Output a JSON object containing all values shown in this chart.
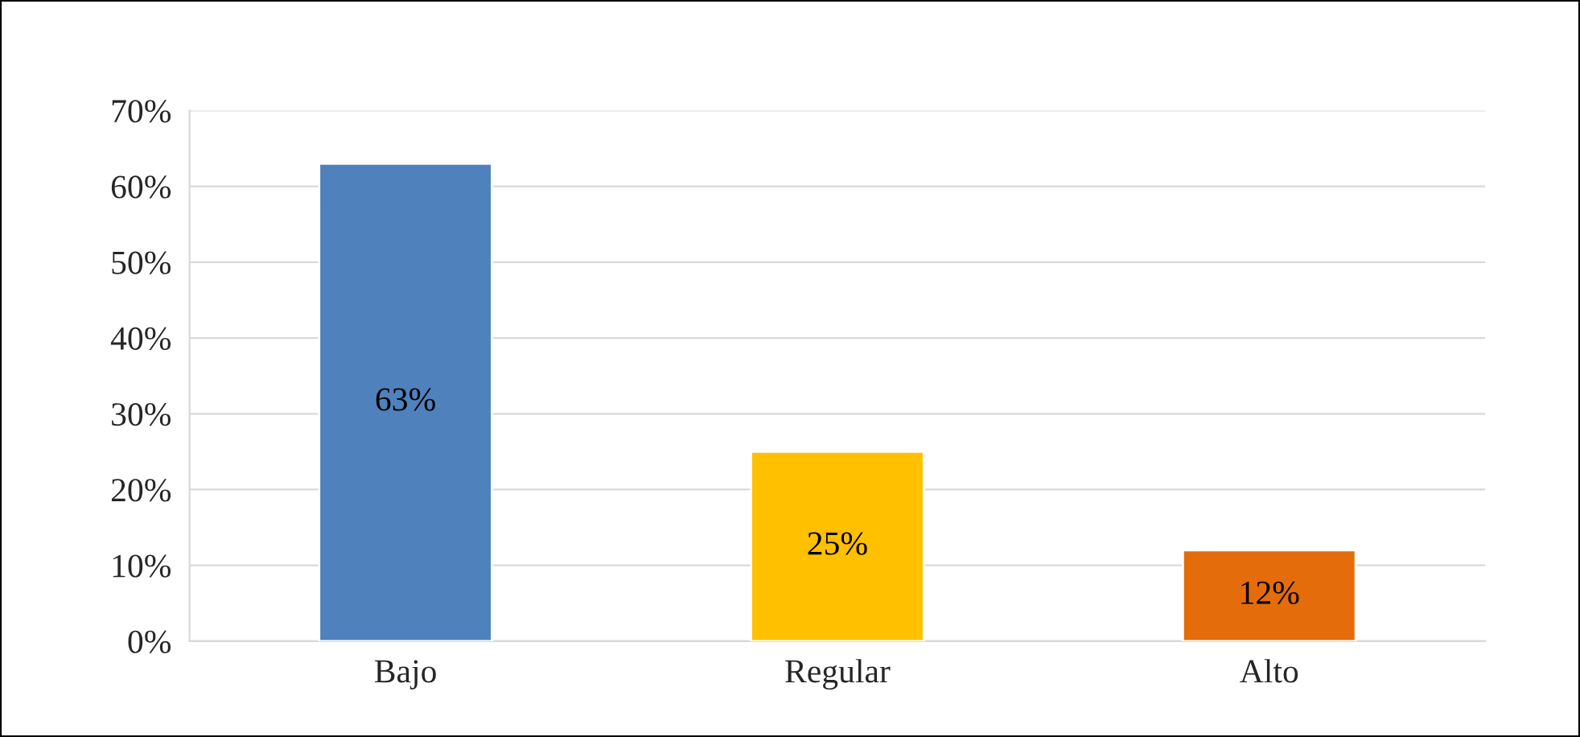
{
  "chart_data": {
    "type": "bar",
    "categories": [
      "Bajo",
      "Regular",
      "Alto"
    ],
    "values": [
      63,
      25,
      12
    ],
    "colors": [
      "#4f81bd",
      "#ffc000",
      "#e46c0a"
    ],
    "value_labels": [
      "63%",
      "25%",
      "12%"
    ],
    "ylim": [
      0,
      70
    ],
    "yticks": [
      {
        "value": 0,
        "label": "0%"
      },
      {
        "value": 10,
        "label": "10%"
      },
      {
        "value": 20,
        "label": "20%"
      },
      {
        "value": 30,
        "label": "30%"
      },
      {
        "value": 40,
        "label": "40%"
      },
      {
        "value": 50,
        "label": "50%"
      },
      {
        "value": 60,
        "label": "60%"
      },
      {
        "value": 70,
        "label": "70%"
      }
    ],
    "grid": "y"
  }
}
